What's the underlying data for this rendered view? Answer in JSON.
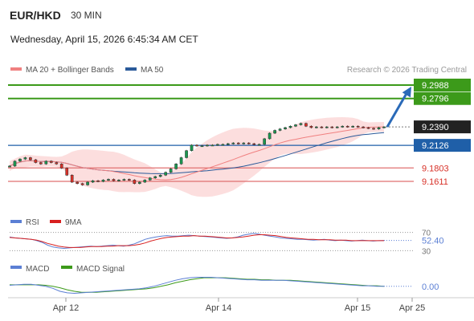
{
  "header": {
    "symbol": "EUR/HKD",
    "timeframe": "30 MIN",
    "datetime": "Wednesday, April 15, 2026 6:45:34 AM CET"
  },
  "legend": {
    "ma20_label": "MA 20 + Bollinger Bands",
    "ma50_label": "MA 50",
    "credit": "Research © 2026 Trading Central"
  },
  "colors": {
    "up": "#1a9850",
    "down": "#d73027",
    "target_line": "#3c9a1a",
    "pivot_line": "#1f5fa8",
    "support_line": "#e07070",
    "ma20": "#f08080",
    "ma50": "#2a5a9a",
    "arrow": "#2a6ab8",
    "rsi": "#5b7fd4",
    "rsi_ma": "#d82020",
    "macd": "#5b7fd4",
    "macd_signal": "#3c9a1a"
  },
  "chart_data": [
    {
      "type": "candlestick",
      "title": "EUR/HKD",
      "ylim": [
        9.15,
        9.31
      ],
      "x_tick_labels": [
        "Apr 12",
        "Apr 14",
        "Apr 15",
        "Apr 25"
      ],
      "close_series": [
        9.183,
        9.19,
        9.193,
        9.195,
        9.192,
        9.188,
        9.186,
        9.19,
        9.188,
        9.186,
        9.18,
        9.17,
        9.16,
        9.158,
        9.156,
        9.16,
        9.162,
        9.161,
        9.163,
        9.164,
        9.162,
        9.163,
        9.164,
        9.163,
        9.158,
        9.16,
        9.163,
        9.166,
        9.168,
        9.17,
        9.174,
        9.179,
        9.186,
        9.195,
        9.205,
        9.213,
        9.212,
        9.212,
        9.213,
        9.213,
        9.214,
        9.214,
        9.215,
        9.216,
        9.215,
        9.216,
        9.215,
        9.214,
        9.214,
        9.222,
        9.23,
        9.234,
        9.236,
        9.238,
        9.24,
        9.242,
        9.244,
        9.24,
        9.238,
        9.239,
        9.238,
        9.239,
        9.238,
        9.239,
        9.24,
        9.239,
        9.24,
        9.239,
        9.238,
        9.237,
        9.236,
        9.238,
        9.239
      ],
      "levels": [
        {
          "label": "9.2988",
          "value": 9.2988,
          "kind": "target"
        },
        {
          "label": "9.2796",
          "value": 9.2796,
          "kind": "target"
        },
        {
          "label": "9.2390",
          "value": 9.239,
          "kind": "last"
        },
        {
          "label": "9.2126",
          "value": 9.2126,
          "kind": "pivot"
        },
        {
          "label": "9.1803",
          "value": 9.1803,
          "kind": "support"
        },
        {
          "label": "9.1611",
          "value": 9.1611,
          "kind": "support"
        }
      ],
      "series": [
        {
          "name": "MA 20 + Bollinger Bands"
        },
        {
          "name": "MA 50"
        }
      ],
      "forecast_arrow": {
        "from": 9.239,
        "to": 9.2988
      }
    },
    {
      "type": "line",
      "title": "RSI",
      "ylim": [
        20,
        80
      ],
      "levels": [
        70,
        30
      ],
      "value_label": "52.40",
      "series": [
        {
          "name": "RSI",
          "values": [
            60,
            58,
            57,
            56,
            55,
            52,
            48,
            42,
            38,
            36,
            35,
            36,
            37,
            38,
            39,
            40,
            39,
            40,
            41,
            42,
            41,
            40,
            42,
            45,
            50,
            55,
            58,
            60,
            62,
            63,
            62,
            62,
            63,
            64,
            63,
            62,
            61,
            60,
            59,
            58,
            57,
            58,
            60,
            64,
            66,
            68,
            66,
            64,
            62,
            60,
            58,
            57,
            56,
            55,
            55,
            54,
            53,
            54,
            55,
            53,
            52,
            53,
            52,
            51,
            52,
            53,
            52,
            51,
            52,
            52.4
          ]
        },
        {
          "name": "9MA",
          "values": [
            59,
            58,
            57,
            56,
            55,
            53,
            50,
            46,
            43,
            40,
            38,
            37,
            37,
            37,
            38,
            39,
            39,
            39,
            40,
            40,
            41,
            41,
            41,
            42,
            44,
            47,
            51,
            54,
            57,
            59,
            60,
            61,
            62,
            62,
            63,
            62,
            62,
            61,
            60,
            59,
            58,
            58,
            59,
            60,
            62,
            64,
            65,
            65,
            64,
            63,
            61,
            59,
            58,
            57,
            56,
            55,
            55,
            54,
            54,
            54,
            53,
            53,
            53,
            52,
            52,
            52,
            52,
            52,
            52,
            52
          ]
        }
      ]
    },
    {
      "type": "line",
      "title": "MACD",
      "value_label": "0.00",
      "series": [
        {
          "name": "MACD",
          "values": [
            0.0,
            0.1,
            0.2,
            0.2,
            0.0,
            -0.2,
            -0.6,
            -1.2,
            -1.5,
            -1.6,
            -1.5,
            -1.4,
            -1.3,
            -1.2,
            -1.1,
            -1.0,
            -0.9,
            -0.8,
            -0.7,
            -0.5,
            -0.2,
            0.2,
            0.6,
            1.0,
            1.3,
            1.5,
            1.6,
            1.6,
            1.6,
            1.5,
            1.4,
            1.3,
            1.2,
            1.1,
            1.1,
            1.0,
            1.0,
            1.0,
            1.0,
            0.9,
            0.8,
            0.7,
            0.6,
            0.5,
            0.4,
            0.3,
            0.2,
            0.1,
            0.0,
            -0.1,
            -0.1,
            -0.2,
            -0.2
          ]
        },
        {
          "name": "MACD Signal",
          "values": [
            0.1,
            0.1,
            0.1,
            0.1,
            0.1,
            0.0,
            -0.2,
            -0.5,
            -0.9,
            -1.2,
            -1.4,
            -1.4,
            -1.4,
            -1.3,
            -1.2,
            -1.1,
            -1.0,
            -0.9,
            -0.8,
            -0.7,
            -0.5,
            -0.2,
            0.1,
            0.5,
            0.8,
            1.1,
            1.3,
            1.5,
            1.5,
            1.5,
            1.5,
            1.4,
            1.3,
            1.2,
            1.2,
            1.1,
            1.1,
            1.0,
            1.0,
            1.0,
            0.9,
            0.8,
            0.7,
            0.6,
            0.5,
            0.4,
            0.3,
            0.2,
            0.1,
            0.0,
            -0.1,
            -0.1,
            -0.2
          ]
        }
      ]
    }
  ]
}
